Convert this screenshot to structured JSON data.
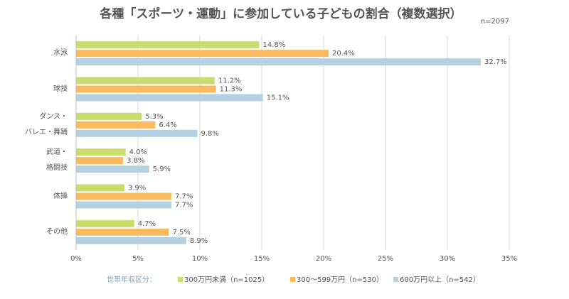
{
  "chart_data": {
    "type": "hbar",
    "title": "各種「スポーツ・運動」に参加している子どもの割合（複数選択）",
    "note": "n=2097",
    "legend_title": "世帯年収区分：",
    "categories": [
      "水泳",
      "球技",
      "ダンス・\nバレエ・舞踊",
      "武道・\n格闘技",
      "体操",
      "その他"
    ],
    "series": [
      {
        "name": "300万円未満（n=1025）",
        "color": "#c9dc6e",
        "values": [
          14.8,
          11.2,
          5.3,
          4.0,
          3.9,
          4.7
        ],
        "value_labels": [
          "14.8%",
          "11.2%",
          "5.3%",
          "4.0%",
          "3.9%",
          "4.7%"
        ]
      },
      {
        "name": "300〜599万円（n=530）",
        "color": "#f9bb60",
        "values": [
          20.4,
          11.3,
          6.4,
          3.8,
          7.7,
          7.5
        ],
        "value_labels": [
          "20.4%",
          "11.3%",
          "6.4%",
          "3.8%",
          "7.7%",
          "7.5%"
        ]
      },
      {
        "name": "600万円以上（n=542）",
        "color": "#b4d0e2",
        "values": [
          32.7,
          15.1,
          9.8,
          5.9,
          7.7,
          8.9
        ],
        "value_labels": [
          "32.7%",
          "15.1%",
          "9.8%",
          "5.9%",
          "7.7%",
          "8.9%"
        ]
      }
    ],
    "xlim": [
      0,
      35
    ],
    "xticks": [
      {
        "value": 0,
        "label": "0%"
      },
      {
        "value": 5,
        "label": "5%"
      },
      {
        "value": 10,
        "label": "10%"
      },
      {
        "value": 15,
        "label": "15%"
      },
      {
        "value": 20,
        "label": "20%"
      },
      {
        "value": 25,
        "label": "25%"
      },
      {
        "value": 30,
        "label": "30%"
      },
      {
        "value": 35,
        "label": "35%"
      }
    ],
    "grid": true
  }
}
